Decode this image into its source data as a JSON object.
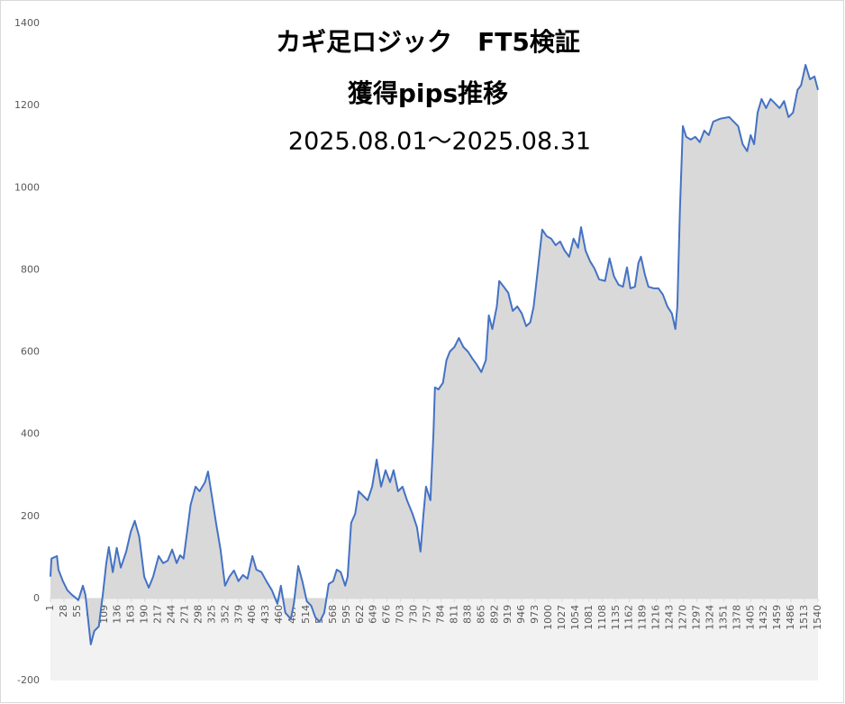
{
  "chart_data": {
    "type": "area",
    "title": "カギ足ロジック　FT5検証",
    "subtitle": "獲得pips推移",
    "period": "2025.08.01～2025.08.31",
    "color": "#4472c4",
    "fill": "#d9d9d9",
    "xlim": [
      1,
      1540
    ],
    "xticks": [
      1,
      28,
      55,
      82,
      109,
      136,
      163,
      190,
      217,
      244,
      271,
      298,
      325,
      352,
      379,
      406,
      433,
      460,
      487,
      514,
      541,
      568,
      595,
      622,
      649,
      676,
      703,
      730,
      757,
      784,
      811,
      838,
      865,
      892,
      919,
      946,
      973,
      1000,
      1027,
      1054,
      1081,
      1108,
      1135,
      1162,
      1189,
      1216,
      1243,
      1270,
      1297,
      1324,
      1351,
      1378,
      1405,
      1432,
      1459,
      1486,
      1513,
      1540
    ],
    "ylim": [
      -200,
      1400
    ],
    "yticks": [
      -200,
      0,
      200,
      400,
      600,
      800,
      1000,
      1200,
      1400
    ],
    "x": [
      1,
      3,
      14,
      17,
      26,
      35,
      44,
      57,
      66,
      71,
      77,
      82,
      89,
      98,
      106,
      113,
      118,
      126,
      134,
      142,
      153,
      162,
      170,
      179,
      189,
      198,
      207,
      218,
      227,
      236,
      245,
      254,
      261,
      268,
      275,
      282,
      292,
      300,
      311,
      317,
      326,
      333,
      342,
      351,
      360,
      369,
      378,
      387,
      396,
      406,
      414,
      424,
      434,
      445,
      456,
      463,
      472,
      483,
      489,
      498,
      506,
      515,
      524,
      532,
      541,
      550,
      559,
      568,
      575,
      583,
      592,
      597,
      604,
      612,
      619,
      628,
      637,
      646,
      655,
      664,
      673,
      682,
      689,
      698,
      707,
      716,
      727,
      736,
      743,
      749,
      754,
      763,
      769,
      772,
      779,
      788,
      795,
      802,
      811,
      820,
      829,
      838,
      847,
      856,
      865,
      874,
      880,
      887,
      896,
      901,
      910,
      919,
      928,
      937,
      946,
      955,
      963,
      970,
      978,
      987,
      996,
      1005,
      1014,
      1023,
      1032,
      1041,
      1050,
      1059,
      1065,
      1074,
      1083,
      1092,
      1101,
      1113,
      1122,
      1131,
      1140,
      1149,
      1157,
      1164,
      1173,
      1180,
      1185,
      1193,
      1200,
      1211,
      1220,
      1229,
      1238,
      1247,
      1254,
      1258,
      1263,
      1269,
      1276,
      1285,
      1294,
      1303,
      1312,
      1321,
      1330,
      1344,
      1362,
      1371,
      1380,
      1389,
      1398,
      1405,
      1412,
      1419,
      1427,
      1436,
      1445,
      1454,
      1463,
      1472,
      1481,
      1490,
      1499,
      1506,
      1515,
      1524,
      1533,
      1540
    ],
    "values": [
      53,
      97,
      103,
      70,
      42,
      20,
      9,
      -4,
      31,
      9,
      -57,
      -112,
      -79,
      -68,
      9,
      86,
      125,
      64,
      123,
      75,
      114,
      162,
      189,
      151,
      53,
      26,
      53,
      103,
      86,
      92,
      119,
      86,
      105,
      97,
      162,
      228,
      272,
      261,
      283,
      309,
      239,
      184,
      119,
      31,
      53,
      68,
      42,
      57,
      48,
      103,
      70,
      64,
      42,
      20,
      -13,
      31,
      -35,
      -50,
      -13,
      79,
      42,
      -7,
      -18,
      -46,
      -57,
      -35,
      35,
      42,
      70,
      64,
      31,
      53,
      184,
      206,
      261,
      250,
      239,
      272,
      338,
      272,
      312,
      283,
      312,
      261,
      272,
      239,
      206,
      173,
      114,
      206,
      272,
      239,
      404,
      514,
      509,
      525,
      580,
      601,
      612,
      634,
      612,
      601,
      584,
      569,
      551,
      580,
      689,
      656,
      711,
      773,
      759,
      744,
      700,
      711,
      694,
      663,
      672,
      711,
      799,
      898,
      882,
      876,
      860,
      869,
      847,
      832,
      876,
      854,
      904,
      847,
      821,
      803,
      777,
      773,
      828,
      784,
      764,
      759,
      806,
      755,
      759,
      817,
      832,
      788,
      759,
      755,
      755,
      740,
      711,
      694,
      656,
      711,
      942,
      1150,
      1124,
      1117,
      1124,
      1111,
      1139,
      1128,
      1161,
      1168,
      1172,
      1161,
      1150,
      1106,
      1089,
      1128,
      1106,
      1183,
      1216,
      1194,
      1216,
      1205,
      1194,
      1211,
      1172,
      1183,
      1238,
      1249,
      1299,
      1264,
      1271,
      1238
    ]
  }
}
